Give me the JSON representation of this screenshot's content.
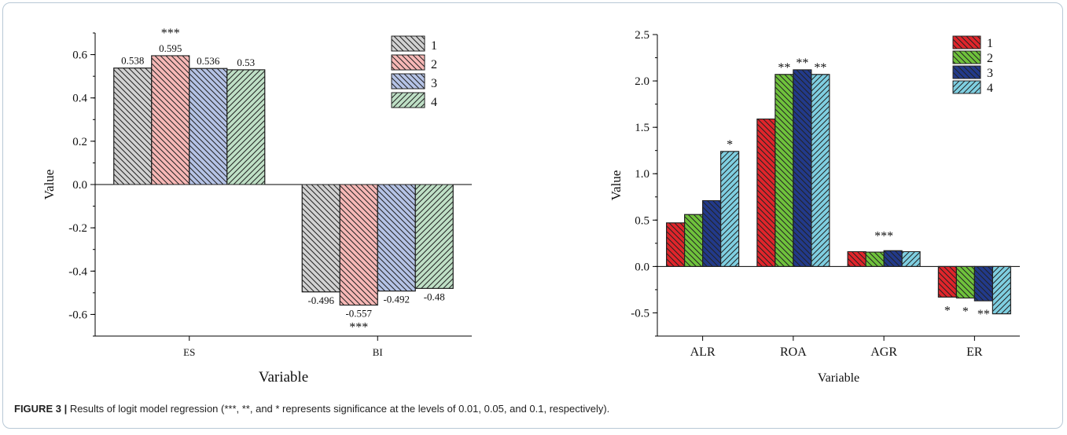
{
  "figure": {
    "label": "FIGURE 3 |",
    "caption": " Results of logit model regression (***, **, and * represents significance at the levels of 0.01, 0.05, and 0.1, respectively)."
  },
  "chart_data": [
    {
      "type": "bar",
      "xlabel": "Variable",
      "ylabel": "Value",
      "ylim": [
        -0.7,
        0.7
      ],
      "yticks": [
        "0.6",
        "0.4",
        "0.2",
        "0.0",
        "-0.2",
        "-0.4",
        "-0.6"
      ],
      "categories": [
        "ES",
        "BI"
      ],
      "legend_position": "top-right",
      "series": [
        {
          "name": "1",
          "color": "#d2d2d2",
          "hatch": "back",
          "values": [
            0.538,
            -0.496
          ],
          "labels": [
            "0.538",
            "-0.496"
          ],
          "sig": [
            "",
            ""
          ]
        },
        {
          "name": "2",
          "color": "#f7b8b6",
          "hatch": "back",
          "values": [
            0.595,
            -0.557
          ],
          "labels": [
            "0.595",
            "-0.557"
          ],
          "sig": [
            "***",
            "***"
          ]
        },
        {
          "name": "3",
          "color": "#b5c3e6",
          "hatch": "back",
          "values": [
            0.536,
            -0.492
          ],
          "labels": [
            "0.536",
            "-0.492"
          ],
          "sig": [
            "",
            ""
          ]
        },
        {
          "name": "4",
          "color": "#bfe0c6",
          "hatch": "fwd",
          "values": [
            0.53,
            -0.48
          ],
          "labels": [
            "0.53",
            "-0.48"
          ],
          "sig": [
            "",
            ""
          ]
        }
      ]
    },
    {
      "type": "bar",
      "xlabel": "Variable",
      "ylabel": "Value",
      "ylim": [
        -0.75,
        2.5
      ],
      "yticks": [
        "2.5",
        "2.0",
        "1.5",
        "1.0",
        "0.5",
        "0.0",
        "-0.5"
      ],
      "categories": [
        "ALR",
        "ROA",
        "AGR",
        "ER"
      ],
      "legend_position": "top-right",
      "series": [
        {
          "name": "1",
          "color": "#e0252b",
          "hatch": "back",
          "values": [
            0.47,
            1.59,
            0.16,
            -0.33
          ],
          "sig": [
            "",
            "",
            "",
            "*"
          ]
        },
        {
          "name": "2",
          "color": "#6fc23c",
          "hatch": "back",
          "values": [
            0.56,
            2.07,
            0.155,
            -0.34
          ],
          "sig": [
            "",
            "**",
            "",
            "*"
          ]
        },
        {
          "name": "3",
          "color": "#223a8a",
          "hatch": "back",
          "values": [
            0.71,
            2.12,
            0.17,
            -0.37
          ],
          "sig": [
            "",
            "**",
            "",
            "**"
          ]
        },
        {
          "name": "4",
          "color": "#7fcfe1",
          "hatch": "fwd",
          "values": [
            1.24,
            2.07,
            0.16,
            -0.51
          ],
          "sig": [
            "*",
            "**",
            "",
            ""
          ]
        }
      ],
      "group_annotations": [
        "",
        "",
        "***",
        ""
      ]
    }
  ]
}
